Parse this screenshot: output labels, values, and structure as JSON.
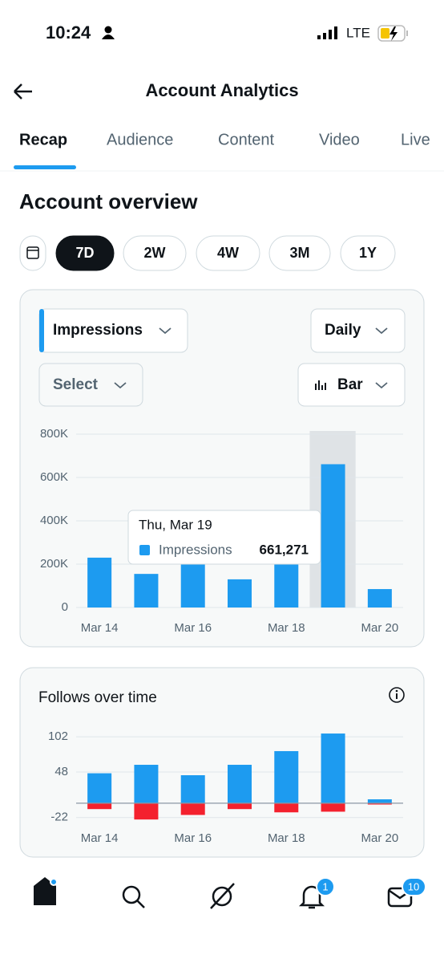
{
  "status": {
    "time": "10:24",
    "network": "LTE"
  },
  "header": {
    "title": "Account Analytics"
  },
  "tabs": {
    "items": [
      "Recap",
      "Audience",
      "Content",
      "Video",
      "Live"
    ],
    "active": 0
  },
  "section": {
    "title": "Account overview"
  },
  "ranges": {
    "items": [
      "7D",
      "2W",
      "4W",
      "3M",
      "1Y"
    ],
    "active": 0
  },
  "controls": {
    "metric": "Impressions",
    "interval": "Daily",
    "compare": "Select",
    "chart_type": "Bar"
  },
  "nav": {
    "badges": [
      "1",
      "10"
    ]
  },
  "chart_data": [
    {
      "type": "bar",
      "categories": [
        "Mar 14",
        null,
        "Mar 16",
        null,
        "Mar 18",
        null,
        "Mar 20"
      ],
      "series": [
        {
          "name": "Impressions",
          "color": "#1d9bf0",
          "values": [
            230000,
            155000,
            200000,
            130000,
            200000,
            661271,
            85000
          ],
          "value_labels": [
            null,
            null,
            null,
            null,
            null,
            "661,271",
            null
          ]
        }
      ],
      "tooltip": {
        "title": "Thu, Mar 19"
      },
      "highlight": 5,
      "ylim": [
        0,
        800000
      ],
      "yticks": [
        0,
        {
          "value": 200000,
          "label": "200K"
        },
        {
          "value": 400000,
          "label": "400K"
        },
        {
          "value": 600000,
          "label": "600K"
        },
        {
          "value": 800000,
          "label": "800K"
        }
      ],
      "grid": true
    },
    {
      "type": "bar",
      "title": "Follows over time",
      "categories": [
        "Mar 14",
        null,
        "Mar 16",
        null,
        "Mar 18",
        null,
        "Mar 20"
      ],
      "series": [
        {
          "color": "#1d9bf0",
          "values": [
            46,
            59,
            43,
            59,
            80,
            107,
            6
          ]
        },
        {
          "color": "#f4212e",
          "values": [
            -9,
            -25,
            -18,
            -9,
            -14,
            -13,
            -2
          ]
        }
      ],
      "ylim": [
        -26,
        112
      ],
      "yticks": [
        -22,
        48,
        102
      ],
      "grid": true
    }
  ]
}
